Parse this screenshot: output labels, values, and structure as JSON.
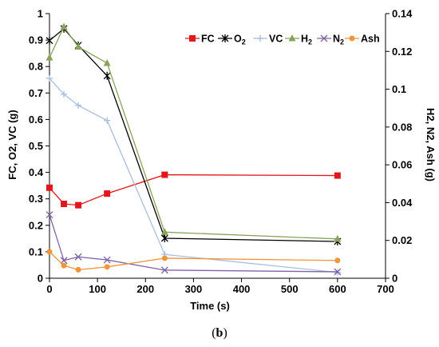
{
  "caption": {
    "open": "(",
    "letter": "b",
    "close": ")"
  },
  "chart_data": {
    "type": "line",
    "xlabel": "Time (s)",
    "ylabel_left": "FC, O2, VC (g)",
    "ylabel_right": "H2, N2, Ash (g)",
    "xlim": [
      0,
      700
    ],
    "ylim_left": [
      0,
      1
    ],
    "ylim_right": [
      0,
      0.14
    ],
    "x_ticks": [
      "0",
      "100",
      "200",
      "300",
      "400",
      "500",
      "600",
      "700"
    ],
    "y_left_ticks": [
      "0",
      "0.1",
      "0.2",
      "0.3",
      "0.4",
      "0.5",
      "0.6",
      "0.7",
      "0.8",
      "0.9",
      "1"
    ],
    "y_right_ticks": [
      "0",
      "0.02",
      "0.04",
      "0.06",
      "0.08",
      "0.1",
      "0.12",
      "0.14"
    ],
    "grid": false,
    "legend_position": "top-right",
    "series": [
      {
        "name": "FC",
        "sub": "",
        "axis": "left",
        "color": "#e3161b",
        "marker": "square",
        "x": [
          0,
          30,
          60,
          120,
          240,
          600
        ],
        "y": [
          0.342,
          0.281,
          0.276,
          0.32,
          0.391,
          0.388
        ]
      },
      {
        "name": "O",
        "sub": "2",
        "axis": "left",
        "color": "#000000",
        "marker": "star",
        "x": [
          0,
          30,
          60,
          120,
          240,
          600
        ],
        "y": [
          0.898,
          0.943,
          0.88,
          0.765,
          0.151,
          0.139
        ]
      },
      {
        "name": "VC",
        "sub": "",
        "axis": "left",
        "color": "#a9bfe2",
        "marker": "plus",
        "x": [
          0,
          30,
          60,
          120,
          240,
          600
        ],
        "y": [
          0.755,
          0.695,
          0.653,
          0.596,
          0.09,
          0.022
        ]
      },
      {
        "name": "H",
        "sub": "2",
        "axis": "right",
        "color": "#8aa35a",
        "marker": "triangle",
        "x": [
          0,
          30,
          60,
          120,
          240,
          600
        ],
        "y": [
          0.1167,
          0.133,
          0.1224,
          0.1138,
          0.0244,
          0.0208
        ]
      },
      {
        "name": "N",
        "sub": "2",
        "axis": "right",
        "color": "#7e64a8",
        "marker": "x",
        "x": [
          0,
          30,
          60,
          120,
          240,
          600
        ],
        "y": [
          0.0336,
          0.0094,
          0.0113,
          0.0097,
          0.0043,
          0.0034
        ]
      },
      {
        "name": "Ash",
        "sub": "",
        "axis": "right",
        "color": "#f0953a",
        "marker": "circle",
        "x": [
          0,
          30,
          60,
          120,
          240,
          600
        ],
        "y": [
          0.014,
          0.0067,
          0.0045,
          0.006,
          0.0106,
          0.0094
        ]
      }
    ]
  }
}
